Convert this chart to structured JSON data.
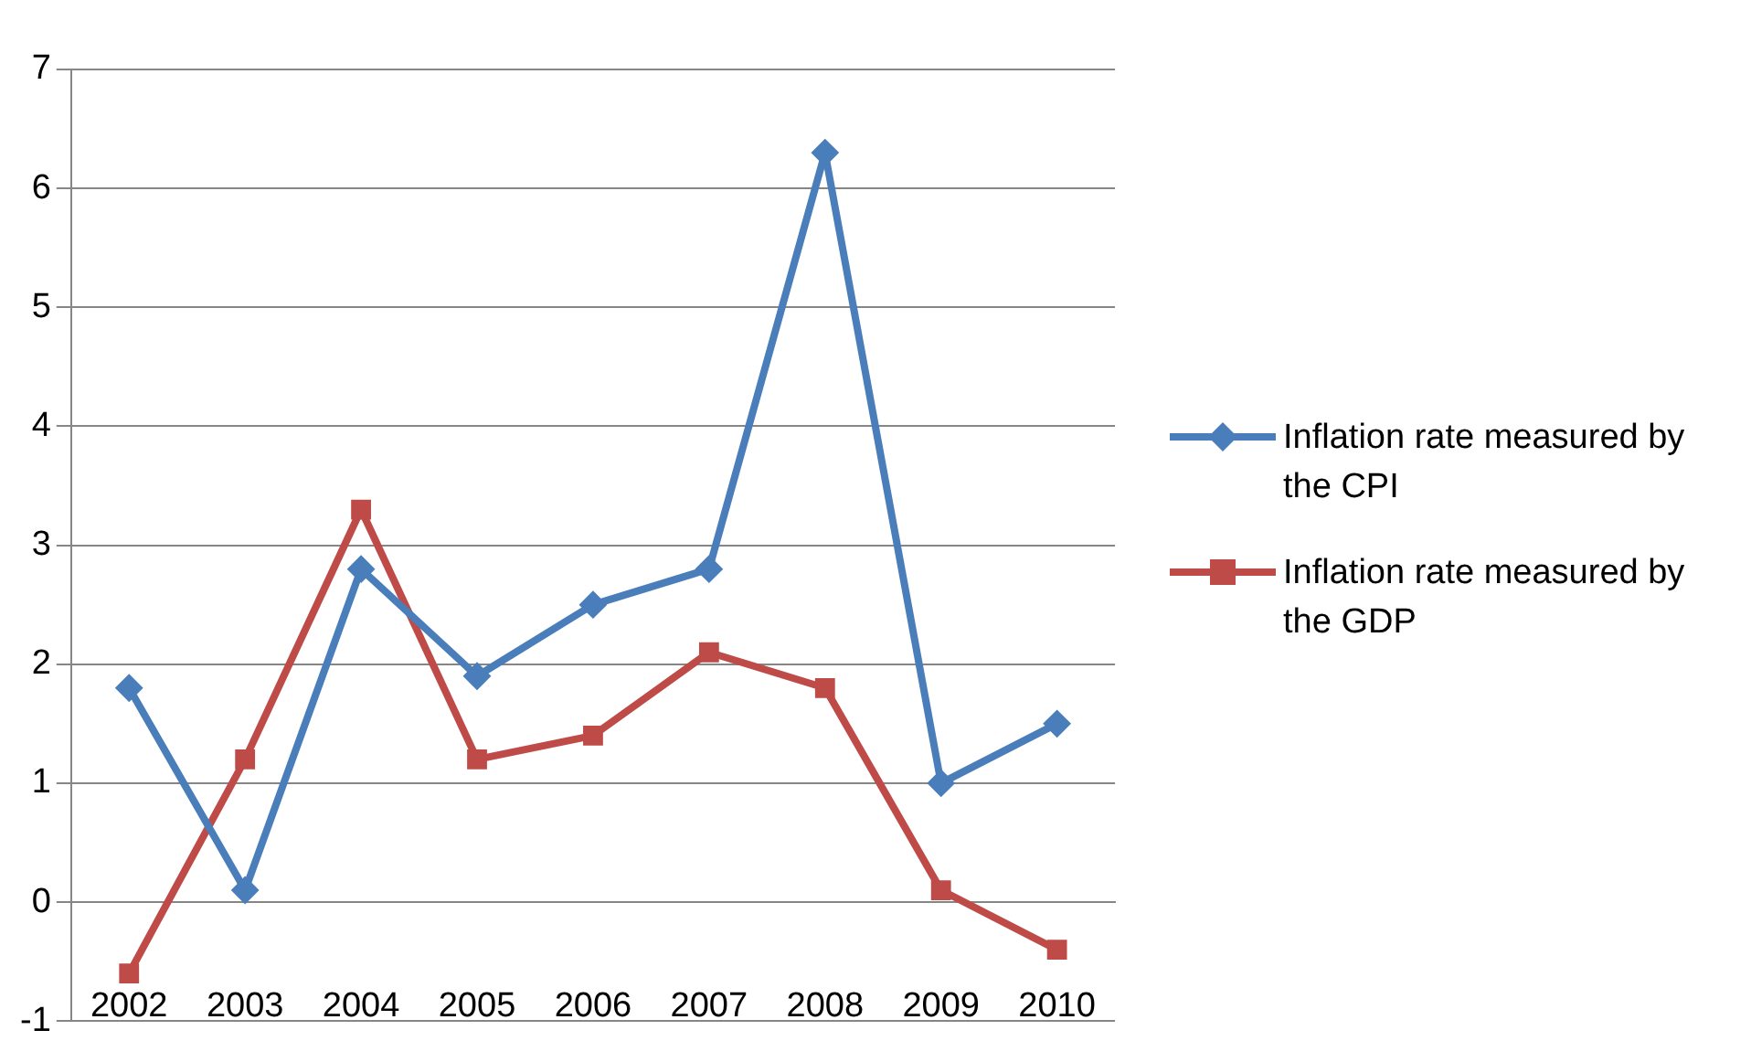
{
  "chart_data": {
    "type": "line",
    "categories": [
      "2002",
      "2003",
      "2004",
      "2005",
      "2006",
      "2007",
      "2008",
      "2009",
      "2010"
    ],
    "series": [
      {
        "name": "Inflation rate measured by the CPI",
        "color": "#4a7ebb",
        "marker": "diamond",
        "values": [
          1.8,
          0.1,
          2.8,
          1.9,
          2.5,
          2.8,
          6.3,
          1.0,
          1.5
        ]
      },
      {
        "name": "Inflation rate measured by the GDP",
        "color": "#be4b48",
        "marker": "square",
        "values": [
          -0.6,
          1.2,
          3.3,
          1.2,
          1.4,
          2.1,
          1.8,
          0.1,
          -0.4
        ]
      }
    ],
    "ylim": [
      -1,
      7
    ],
    "yticks": [
      -1,
      0,
      1,
      2,
      3,
      4,
      5,
      6,
      7
    ],
    "grid": "y",
    "legend": "right",
    "line_style": "solid"
  }
}
